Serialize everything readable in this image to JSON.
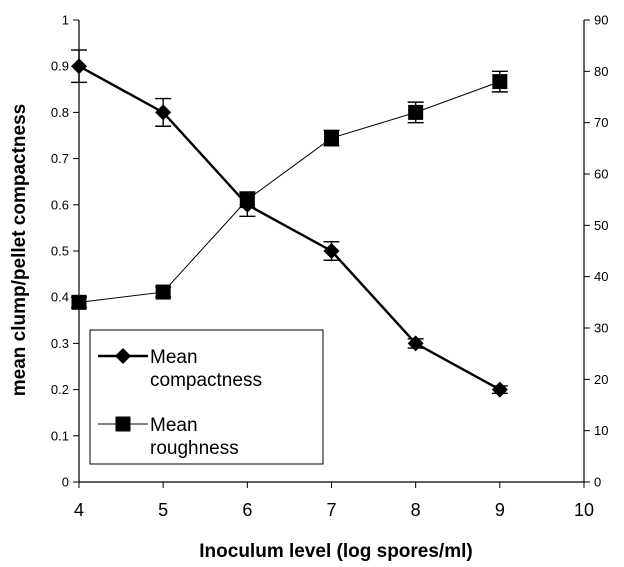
{
  "chart_data": {
    "type": "line",
    "title": "",
    "xlabel": "Inoculum level (log spores/ml)",
    "ylabel": "mean clump/pellet compactness",
    "y2label": "",
    "xlim": [
      4,
      10
    ],
    "ylim": [
      0,
      1
    ],
    "y2lim": [
      0,
      90
    ],
    "x_ticks": [
      "4",
      "5",
      "6",
      "7",
      "8",
      "9",
      "10"
    ],
    "y_ticks": [
      "0",
      "0.1",
      "0.2",
      "0.3",
      "0.4",
      "0.5",
      "0.6",
      "0.7",
      "0.8",
      "0.9",
      "1"
    ],
    "y2_ticks": [
      "0",
      "10",
      "20",
      "30",
      "40",
      "50",
      "60",
      "70",
      "80",
      "90"
    ],
    "grid": false,
    "legend_position": "bottom-left",
    "series": [
      {
        "name": "Mean compactness",
        "legend_lines": [
          "Mean",
          "compactness"
        ],
        "axis": "left",
        "marker": "diamond",
        "line_style": "thick",
        "color": "#000000",
        "x": [
          4,
          5,
          6,
          7,
          8,
          9
        ],
        "y": [
          0.9,
          0.8,
          0.6,
          0.5,
          0.3,
          0.2
        ],
        "error": [
          0.035,
          0.03,
          0.025,
          0.02,
          0.01,
          0.008
        ]
      },
      {
        "name": "Mean roughness",
        "legend_lines": [
          "Mean",
          "roughness"
        ],
        "axis": "right",
        "marker": "square",
        "line_style": "thin",
        "color": "#000000",
        "x": [
          4,
          5,
          6,
          7,
          8,
          9
        ],
        "y": [
          35,
          37,
          55,
          67,
          72,
          78
        ],
        "error": [
          1,
          1,
          1.5,
          1.5,
          2,
          2
        ]
      }
    ]
  }
}
